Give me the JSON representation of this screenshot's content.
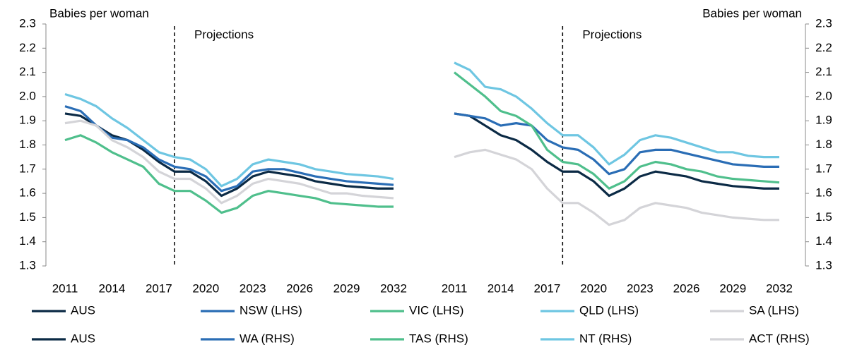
{
  "chart_data": [
    {
      "type": "line",
      "y_label": "Babies per woman",
      "annotation": "Projections",
      "projection_start": 2018,
      "y_axis_side": "left",
      "x": [
        2011,
        2012,
        2013,
        2014,
        2015,
        2016,
        2017,
        2018,
        2019,
        2020,
        2021,
        2022,
        2023,
        2024,
        2025,
        2026,
        2027,
        2028,
        2029,
        2030,
        2031,
        2032
      ],
      "xticks": [
        2011,
        2014,
        2017,
        2020,
        2023,
        2026,
        2029,
        2032
      ],
      "ylim": [
        1.3,
        2.3
      ],
      "yticks": [
        1.3,
        1.4,
        1.5,
        1.6,
        1.7,
        1.8,
        1.9,
        {
          "value": 2,
          "label": "2.0"
        },
        2.1,
        2.2,
        2.3
      ],
      "series": [
        {
          "name": "AUS",
          "color": "#0b2a45",
          "values": [
            1.93,
            1.92,
            1.88,
            1.84,
            1.82,
            1.78,
            1.73,
            1.69,
            1.69,
            1.65,
            1.59,
            1.62,
            1.67,
            1.69,
            1.68,
            1.67,
            1.65,
            1.64,
            1.63,
            1.625,
            1.62,
            1.62
          ]
        },
        {
          "name": "NSW (LHS)",
          "color": "#2a6db5",
          "values": [
            1.96,
            1.94,
            1.88,
            1.83,
            1.82,
            1.79,
            1.74,
            1.71,
            1.7,
            1.67,
            1.61,
            1.63,
            1.69,
            1.7,
            1.7,
            1.685,
            1.67,
            1.66,
            1.65,
            1.645,
            1.64,
            1.635
          ]
        },
        {
          "name": "VIC (LHS)",
          "color": "#4fbf8c",
          "values": [
            1.82,
            1.84,
            1.81,
            1.77,
            1.74,
            1.71,
            1.64,
            1.61,
            1.61,
            1.57,
            1.52,
            1.54,
            1.59,
            1.61,
            1.6,
            1.59,
            1.58,
            1.56,
            1.555,
            1.55,
            1.545,
            1.545
          ]
        },
        {
          "name": "QLD (LHS)",
          "color": "#6ec6e2",
          "values": [
            2.01,
            1.99,
            1.96,
            1.91,
            1.87,
            1.82,
            1.77,
            1.75,
            1.74,
            1.7,
            1.63,
            1.66,
            1.72,
            1.74,
            1.73,
            1.72,
            1.7,
            1.69,
            1.68,
            1.675,
            1.67,
            1.66
          ]
        },
        {
          "name": "SA (LHS)",
          "color": "#d4d4d8",
          "values": [
            1.89,
            1.9,
            1.88,
            1.82,
            1.79,
            1.75,
            1.69,
            1.66,
            1.66,
            1.62,
            1.56,
            1.59,
            1.64,
            1.66,
            1.65,
            1.64,
            1.62,
            1.6,
            1.6,
            1.59,
            1.585,
            1.58
          ]
        }
      ]
    },
    {
      "type": "line",
      "y_label": "Babies per woman",
      "annotation": "Projections",
      "projection_start": 2018,
      "y_axis_side": "right",
      "x": [
        2011,
        2012,
        2013,
        2014,
        2015,
        2016,
        2017,
        2018,
        2019,
        2020,
        2021,
        2022,
        2023,
        2024,
        2025,
        2026,
        2027,
        2028,
        2029,
        2030,
        2031,
        2032
      ],
      "xticks": [
        2011,
        2014,
        2017,
        2020,
        2023,
        2026,
        2029,
        2032
      ],
      "ylim": [
        1.3,
        2.3
      ],
      "yticks": [
        1.3,
        1.4,
        1.5,
        1.6,
        1.7,
        1.8,
        1.9,
        {
          "value": 2,
          "label": "2.0"
        },
        2.1,
        2.2,
        2.3
      ],
      "series": [
        {
          "name": "AUS",
          "color": "#0b2a45",
          "values": [
            1.93,
            1.92,
            1.88,
            1.84,
            1.82,
            1.78,
            1.73,
            1.69,
            1.69,
            1.65,
            1.59,
            1.62,
            1.67,
            1.69,
            1.68,
            1.67,
            1.65,
            1.64,
            1.63,
            1.625,
            1.62,
            1.62
          ]
        },
        {
          "name": "WA (RHS)",
          "color": "#2a6db5",
          "values": [
            1.93,
            1.92,
            1.91,
            1.88,
            1.89,
            1.88,
            1.82,
            1.79,
            1.78,
            1.74,
            1.68,
            1.7,
            1.77,
            1.78,
            1.78,
            1.765,
            1.75,
            1.735,
            1.72,
            1.715,
            1.71,
            1.71
          ]
        },
        {
          "name": "TAS (RHS)",
          "color": "#4fbf8c",
          "values": [
            2.1,
            2.05,
            2.0,
            1.94,
            1.92,
            1.88,
            1.78,
            1.73,
            1.72,
            1.68,
            1.62,
            1.65,
            1.71,
            1.73,
            1.72,
            1.7,
            1.69,
            1.67,
            1.66,
            1.655,
            1.65,
            1.645
          ]
        },
        {
          "name": "NT (RHS)",
          "color": "#6ec6e2",
          "values": [
            2.14,
            2.11,
            2.04,
            2.03,
            2.0,
            1.95,
            1.89,
            1.84,
            1.84,
            1.79,
            1.72,
            1.76,
            1.82,
            1.84,
            1.83,
            1.81,
            1.79,
            1.77,
            1.77,
            1.755,
            1.75,
            1.75
          ]
        },
        {
          "name": "ACT (RHS)",
          "color": "#d4d4d8",
          "values": [
            1.75,
            1.77,
            1.78,
            1.76,
            1.74,
            1.7,
            1.62,
            1.56,
            1.56,
            1.52,
            1.47,
            1.49,
            1.54,
            1.56,
            1.55,
            1.54,
            1.52,
            1.51,
            1.5,
            1.495,
            1.49,
            1.49
          ]
        }
      ]
    }
  ]
}
